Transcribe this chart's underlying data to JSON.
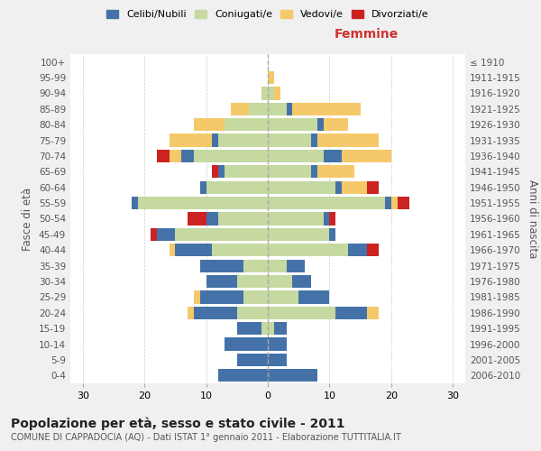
{
  "age_groups": [
    "0-4",
    "5-9",
    "10-14",
    "15-19",
    "20-24",
    "25-29",
    "30-34",
    "35-39",
    "40-44",
    "45-49",
    "50-54",
    "55-59",
    "60-64",
    "65-69",
    "70-74",
    "75-79",
    "80-84",
    "85-89",
    "90-94",
    "95-99",
    "100+"
  ],
  "birth_years": [
    "2006-2010",
    "2001-2005",
    "1996-2000",
    "1991-1995",
    "1986-1990",
    "1981-1985",
    "1976-1980",
    "1971-1975",
    "1966-1970",
    "1961-1965",
    "1956-1960",
    "1951-1955",
    "1946-1950",
    "1941-1945",
    "1936-1940",
    "1931-1935",
    "1926-1930",
    "1921-1925",
    "1916-1920",
    "1911-1915",
    "≤ 1910"
  ],
  "male": {
    "celibi": [
      8,
      5,
      7,
      4,
      7,
      7,
      5,
      7,
      6,
      3,
      2,
      1,
      1,
      1,
      2,
      1,
      0,
      0,
      0,
      0,
      0
    ],
    "coniugati": [
      0,
      0,
      0,
      1,
      5,
      4,
      5,
      4,
      9,
      15,
      8,
      21,
      10,
      7,
      12,
      8,
      7,
      3,
      1,
      0,
      0
    ],
    "vedovi": [
      0,
      0,
      0,
      0,
      1,
      1,
      0,
      0,
      1,
      0,
      0,
      0,
      0,
      0,
      2,
      7,
      5,
      3,
      0,
      0,
      0
    ],
    "divorziati": [
      0,
      0,
      0,
      0,
      0,
      0,
      0,
      0,
      0,
      1,
      3,
      0,
      0,
      1,
      2,
      0,
      0,
      0,
      0,
      0,
      0
    ]
  },
  "female": {
    "nubili": [
      8,
      3,
      3,
      2,
      5,
      5,
      3,
      3,
      3,
      1,
      1,
      1,
      1,
      1,
      3,
      1,
      1,
      1,
      0,
      0,
      0
    ],
    "coniugate": [
      0,
      0,
      0,
      1,
      11,
      5,
      4,
      3,
      13,
      10,
      9,
      19,
      11,
      7,
      9,
      7,
      8,
      3,
      1,
      0,
      0
    ],
    "vedove": [
      0,
      0,
      0,
      0,
      2,
      0,
      0,
      0,
      0,
      0,
      0,
      1,
      4,
      6,
      8,
      10,
      4,
      11,
      1,
      1,
      0
    ],
    "divorziate": [
      0,
      0,
      0,
      0,
      0,
      0,
      0,
      0,
      2,
      0,
      1,
      2,
      2,
      0,
      0,
      0,
      0,
      0,
      0,
      0,
      0
    ]
  },
  "colors": {
    "celibi": "#4472a8",
    "coniugati": "#c5d9a0",
    "vedovi": "#f5c96a",
    "divorziati": "#cc2222"
  },
  "xlim": 32,
  "title": "Popolazione per età, sesso e stato civile - 2011",
  "subtitle": "COMUNE DI CAPPADOCIA (AQ) - Dati ISTAT 1° gennaio 2011 - Elaborazione TUTTITALIA.IT",
  "ylabel_left": "Fasce di età",
  "ylabel_right": "Anni di nascita",
  "xlabel_right": "Femmine",
  "bg_color": "#f0f0f0",
  "plot_bg": "#ffffff"
}
